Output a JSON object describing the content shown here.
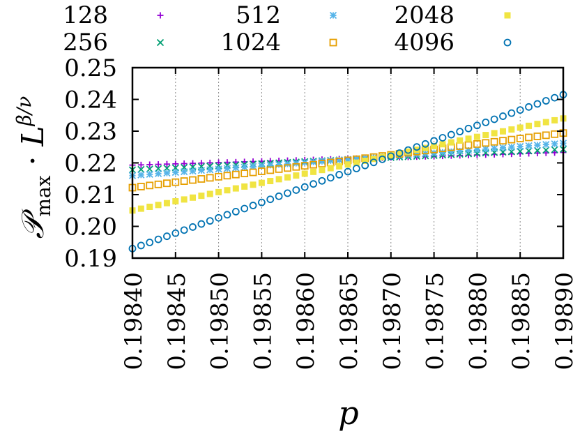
{
  "chart_data": {
    "type": "scatter",
    "xlabel": "p",
    "ylabel": "𝒫max · L^{β/ν}",
    "xlim": [
      0.1984,
      0.1989
    ],
    "ylim": [
      0.19,
      0.25
    ],
    "xticks": [
      "0.19840",
      "0.19845",
      "0.19850",
      "0.19855",
      "0.19860",
      "0.19865",
      "0.19870",
      "0.19875",
      "0.19880",
      "0.19885",
      "0.19890"
    ],
    "yticks": [
      "0.19",
      "0.20",
      "0.21",
      "0.22",
      "0.23",
      "0.24",
      "0.25"
    ],
    "x_grid": true,
    "y_grid": false,
    "legend_position": "top",
    "n_points": 51,
    "series": [
      {
        "name": "128",
        "marker": "plus",
        "color": "#9400d3",
        "y_start": 0.2193,
        "y_end": 0.2233
      },
      {
        "name": "256",
        "marker": "cross",
        "color": "#009e73",
        "y_start": 0.2178,
        "y_end": 0.2243
      },
      {
        "name": "512",
        "marker": "star",
        "color": "#56b4e9",
        "y_start": 0.216,
        "y_end": 0.2262
      },
      {
        "name": "1024",
        "marker": "square",
        "color": "#e69f00",
        "y_start": 0.2122,
        "y_end": 0.2294
      },
      {
        "name": "2048",
        "marker": "box",
        "color": "#f0e442",
        "y_start": 0.205,
        "y_end": 0.234
      },
      {
        "name": "4096",
        "marker": "circle",
        "color": "#0072b2",
        "y_start": 0.193,
        "y_end": 0.2415
      }
    ]
  }
}
